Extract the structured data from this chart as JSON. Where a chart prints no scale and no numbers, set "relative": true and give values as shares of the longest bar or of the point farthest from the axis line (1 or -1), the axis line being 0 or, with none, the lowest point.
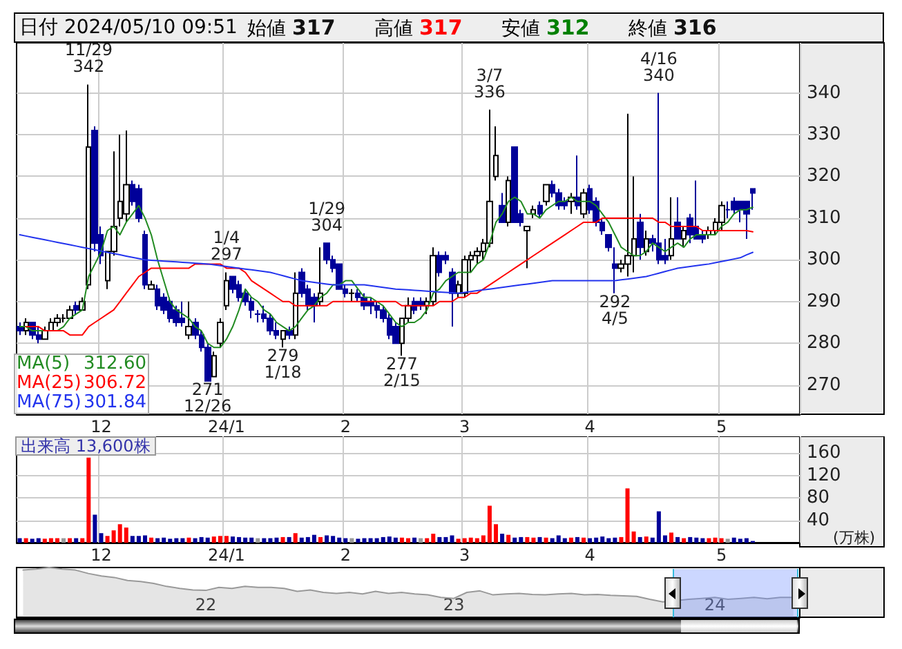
{
  "chart_data": [
    {
      "type": "candlestick",
      "title": "日付 2024/05/10 09:51",
      "legend": "bottom left",
      "grid": true,
      "marker": "none",
      "line_style": "solid",
      "ylim": [
        263,
        352
      ],
      "yticks": [
        270,
        280,
        290,
        300,
        310,
        320,
        330,
        340
      ],
      "annotations": [
        "始値 317",
        "高値 317",
        "安値 312",
        "終値 316",
        {
          "text": "11/29\n342",
          "y": 342
        },
        {
          "text": "1/4\n297",
          "y": 297
        },
        {
          "text": "1/29\n304",
          "y": 304
        },
        {
          "text": "3/7\n336",
          "y": 336
        },
        {
          "text": "4/16\n340",
          "y": 340
        },
        {
          "text": "271\n12/26",
          "y": 271
        },
        {
          "text": "279\n1/18",
          "y": 279
        },
        {
          "text": "277\n2/15",
          "y": 277
        },
        {
          "text": "292\n4/5",
          "y": 292
        },
        "312.60",
        "306.72",
        "301.84"
      ],
      "categories": [
        null,
        null,
        null,
        null,
        null,
        null,
        null,
        null,
        null,
        null,
        null,
        null,
        null,
        "12",
        null,
        null,
        null,
        null,
        null,
        null,
        null,
        null,
        null,
        null,
        null,
        null,
        null,
        null,
        null,
        null,
        null,
        null,
        null,
        "24/1",
        null,
        null,
        null,
        null,
        null,
        null,
        null,
        null,
        null,
        null,
        null,
        null,
        null,
        null,
        null,
        null,
        null,
        null,
        "2",
        null,
        null,
        null,
        null,
        null,
        null,
        null,
        null,
        null,
        null,
        null,
        null,
        null,
        null,
        null,
        null,
        null,
        null,
        "3",
        null,
        null,
        null,
        null,
        null,
        null,
        null,
        null,
        null,
        null,
        null,
        null,
        null,
        null,
        null,
        null,
        null,
        null,
        null,
        "4",
        null,
        null,
        null,
        null,
        null,
        null,
        null,
        null,
        null,
        null,
        null,
        null,
        null,
        null,
        null,
        null,
        null,
        null,
        null,
        null,
        "5",
        null,
        null,
        null,
        null,
        null
      ],
      "ohlc": [
        [
          284,
          285,
          282,
          283
        ],
        [
          283,
          286,
          282,
          285
        ],
        [
          285,
          285,
          281,
          282
        ],
        [
          282,
          284,
          280,
          281
        ],
        [
          281,
          284,
          281,
          283
        ],
        [
          283,
          286,
          283,
          285
        ],
        [
          285,
          287,
          284,
          286
        ],
        [
          286,
          287,
          285,
          286
        ],
        [
          286,
          289,
          286,
          288
        ],
        [
          289,
          290,
          287,
          288
        ],
        [
          288,
          291,
          288,
          290
        ],
        [
          294,
          342,
          293,
          327
        ],
        [
          331,
          332,
          302,
          304
        ],
        [
          306,
          308,
          299,
          301
        ],
        [
          295,
          302,
          293,
          302
        ],
        [
          302,
          326,
          301,
          308
        ],
        [
          310,
          330,
          308,
          314
        ],
        [
          311,
          331,
          309,
          318
        ],
        [
          318,
          319,
          313,
          314
        ],
        [
          317,
          318,
          309,
          310
        ],
        [
          306,
          307,
          293,
          294
        ],
        [
          293,
          295,
          293,
          294
        ],
        [
          293,
          294,
          288,
          289
        ],
        [
          291,
          292,
          287,
          288
        ],
        [
          290,
          291,
          285,
          286
        ],
        [
          288,
          289,
          284,
          285
        ],
        [
          286,
          290,
          284,
          285
        ],
        [
          282,
          290,
          281,
          284
        ],
        [
          285,
          286,
          281,
          282
        ],
        [
          282,
          283,
          278,
          279
        ],
        [
          279,
          280,
          271,
          271
        ],
        [
          272,
          278,
          272,
          277
        ],
        [
          280,
          286,
          279,
          285
        ],
        [
          289,
          297,
          288,
          295
        ],
        [
          296,
          296,
          292,
          293
        ],
        [
          294,
          295,
          290,
          291
        ],
        [
          292,
          293,
          289,
          290
        ],
        [
          290,
          291,
          286,
          288
        ],
        [
          287,
          288,
          285,
          287
        ],
        [
          287,
          289,
          285,
          286
        ],
        [
          286,
          287,
          282,
          283
        ],
        [
          283,
          285,
          281,
          282
        ],
        [
          281,
          283,
          279,
          283
        ],
        [
          283,
          284,
          281,
          282
        ],
        [
          282,
          297,
          281,
          292
        ],
        [
          297,
          298,
          291,
          292
        ],
        [
          293,
          294,
          288,
          289
        ],
        [
          291,
          292,
          285,
          289
        ],
        [
          290,
          303,
          289,
          292
        ],
        [
          304,
          304,
          299,
          300
        ],
        [
          300,
          301,
          297,
          298
        ],
        [
          299,
          299,
          293,
          293
        ],
        [
          293,
          294,
          291,
          292
        ],
        [
          292,
          293,
          290,
          292
        ],
        [
          292,
          293,
          290,
          291
        ],
        [
          291,
          292,
          288,
          289
        ],
        [
          290,
          291,
          287,
          289
        ],
        [
          289,
          290,
          286,
          288
        ],
        [
          288,
          289,
          285,
          286
        ],
        [
          286,
          287,
          281,
          282
        ],
        [
          284,
          285,
          280,
          280
        ],
        [
          280,
          286,
          277,
          286
        ],
        [
          286,
          291,
          285,
          289
        ],
        [
          290,
          291,
          287,
          288
        ],
        [
          290,
          291,
          288,
          289
        ],
        [
          289,
          291,
          287,
          290
        ],
        [
          290,
          303,
          289,
          301
        ],
        [
          301,
          302,
          296,
          297
        ],
        [
          301,
          302,
          299,
          300
        ],
        [
          297,
          298,
          284,
          292
        ],
        [
          292,
          295,
          291,
          294
        ],
        [
          292,
          301,
          291,
          300
        ],
        [
          300,
          302,
          297,
          301
        ],
        [
          301,
          303,
          299,
          302
        ],
        [
          302,
          305,
          300,
          304
        ],
        [
          304,
          336,
          303,
          314
        ],
        [
          320,
          332,
          319,
          325
        ],
        [
          313,
          316,
          309,
          309
        ],
        [
          309,
          320,
          308,
          319
        ],
        [
          327,
          327,
          309,
          309
        ],
        [
          311,
          312,
          308,
          309
        ],
        [
          307,
          308,
          298,
          308
        ],
        [
          311,
          313,
          310,
          312
        ],
        [
          313,
          314,
          310,
          311
        ],
        [
          314,
          318,
          313,
          318
        ],
        [
          318,
          319,
          315,
          316
        ],
        [
          316,
          317,
          312,
          313
        ],
        [
          314,
          315,
          312,
          313
        ],
        [
          314,
          316,
          311,
          315
        ],
        [
          315,
          325,
          312,
          313
        ],
        [
          311,
          317,
          310,
          316
        ],
        [
          317,
          318,
          311,
          312
        ],
        [
          314,
          315,
          308,
          309
        ],
        [
          309,
          310,
          306,
          307
        ],
        [
          306,
          306,
          302,
          303
        ],
        [
          299,
          303,
          292,
          298
        ],
        [
          298,
          300,
          297,
          299
        ],
        [
          299,
          335,
          296,
          301
        ],
        [
          301,
          320,
          297,
          305
        ],
        [
          309,
          311,
          300,
          303
        ],
        [
          302,
          307,
          301,
          305
        ],
        [
          305,
          306,
          302,
          304
        ],
        [
          304,
          340,
          299,
          300
        ],
        [
          301,
          305,
          299,
          300
        ],
        [
          301,
          315,
          300,
          305
        ],
        [
          309,
          315,
          305,
          305
        ],
        [
          305,
          308,
          303,
          307
        ],
        [
          310,
          311,
          304,
          306
        ],
        [
          308,
          319,
          305,
          305
        ],
        [
          306,
          307,
          304,
          305
        ],
        [
          306,
          308,
          305,
          307
        ],
        [
          307,
          310,
          306,
          309
        ],
        [
          309,
          314,
          307,
          313
        ],
        [
          312,
          314,
          310,
          312
        ],
        [
          314,
          315,
          311,
          312
        ],
        [
          314,
          314,
          309,
          312
        ],
        [
          314,
          314,
          305,
          311
        ],
        [
          317,
          317,
          312,
          316
        ]
      ],
      "series": [
        {
          "name": "MA(5)",
          "type": "line",
          "color": "#228b22",
          "values": [
            284,
            284,
            283,
            283,
            283,
            283,
            283,
            284,
            286,
            287,
            288,
            296,
            299,
            302,
            307,
            308,
            306,
            309,
            311,
            313,
            310,
            306,
            300,
            295,
            290,
            288,
            287,
            286,
            284,
            283,
            280,
            279,
            279,
            281,
            284,
            288,
            293,
            291,
            290,
            288,
            287,
            285,
            284,
            283,
            284,
            286,
            288,
            289,
            291,
            292,
            294,
            294,
            295,
            295,
            293,
            291,
            291,
            290,
            289,
            287,
            285,
            284,
            285,
            285,
            286,
            288,
            292,
            293,
            295,
            296,
            297,
            297,
            297,
            299,
            300,
            304,
            309,
            311,
            314,
            315,
            314,
            311,
            311,
            310,
            312,
            313,
            314,
            314,
            315,
            314,
            314,
            314,
            313,
            311,
            309,
            306,
            303,
            302,
            301,
            301,
            302,
            304,
            303,
            302,
            303,
            304,
            303,
            305,
            306,
            306,
            306,
            306,
            308,
            309,
            311,
            312,
            312,
            312.6
          ]
        },
        {
          "name": "MA(25)",
          "type": "line",
          "color": "#ff0000",
          "values": [
            null,
            284,
            284,
            284,
            283,
            283,
            283,
            283,
            282,
            282,
            282,
            284,
            285,
            286,
            287,
            288,
            290,
            292,
            294,
            296,
            297,
            298,
            298,
            298,
            298,
            298,
            298,
            298,
            299,
            299,
            299,
            299,
            299,
            298,
            298,
            298,
            297,
            295,
            294,
            293,
            292,
            291,
            290,
            290,
            289,
            289,
            289,
            289,
            289,
            289,
            290,
            290,
            290,
            290,
            290,
            290,
            290,
            290,
            290,
            290,
            290,
            289,
            289,
            289,
            289,
            289,
            289,
            290,
            290,
            290,
            291,
            291,
            292,
            292,
            293,
            294,
            295,
            296,
            297,
            298,
            299,
            300,
            301,
            302,
            303,
            304,
            305,
            306,
            307,
            308,
            309,
            309,
            309,
            310,
            310,
            310,
            310,
            310,
            310,
            310,
            310,
            310,
            309,
            309,
            308,
            308,
            308,
            308,
            308,
            307,
            307,
            307,
            307,
            307,
            307,
            307,
            307,
            306.7
          ]
        },
        {
          "name": "MA(75)",
          "type": "line",
          "color": "#2233ee",
          "values": [
            306,
            305.7,
            305.4,
            305.1,
            304.8,
            304.5,
            304.2,
            303.9,
            303.6,
            303.3,
            303,
            302.7,
            302.4,
            302.1,
            301.8,
            301.5,
            301.2,
            300.9,
            300.6,
            300.3,
            300,
            299.9,
            299.8,
            299.7,
            299.6,
            299.5,
            299.4,
            299.3,
            299.2,
            299.1,
            299,
            298.8,
            298.6,
            298.4,
            298.2,
            298,
            297.8,
            297.6,
            297.4,
            297.2,
            297,
            296.6,
            296.2,
            295.8,
            295.4,
            295,
            294.8,
            294.6,
            294.4,
            294.2,
            294,
            294,
            294,
            294,
            294,
            294,
            293.8,
            293.6,
            293.4,
            293.2,
            293,
            292.9,
            292.8,
            292.7,
            292.6,
            292.5,
            292.4,
            292.3,
            292.2,
            292.1,
            292,
            292.2,
            292.4,
            292.6,
            292.8,
            293,
            293.2,
            293.4,
            293.6,
            293.8,
            294,
            294.2,
            294.4,
            294.6,
            294.8,
            295,
            295,
            295,
            295,
            295,
            295,
            295,
            295,
            295,
            295,
            295,
            295.2,
            295.4,
            295.6,
            295.8,
            296,
            296.4,
            296.8,
            297.2,
            297.6,
            298,
            298.2,
            298.4,
            298.6,
            298.8,
            299,
            299.3,
            299.6,
            299.9,
            300.2,
            300.5,
            301.2,
            301.8
          ]
        }
      ]
    },
    {
      "type": "bar",
      "title": "出来高 13,600株",
      "ylabel": "(万株)",
      "grid": true,
      "ylim": [
        0,
        190
      ],
      "yticks": [
        40,
        80,
        120,
        160
      ],
      "categories": [
        null,
        null,
        null,
        null,
        null,
        null,
        null,
        null,
        null,
        null,
        null,
        null,
        null,
        "12",
        null,
        null,
        null,
        null,
        null,
        null,
        null,
        null,
        null,
        null,
        null,
        null,
        null,
        null,
        null,
        null,
        null,
        null,
        null,
        "24/1",
        null,
        null,
        null,
        null,
        null,
        null,
        null,
        null,
        null,
        null,
        null,
        null,
        null,
        null,
        null,
        null,
        null,
        null,
        "2",
        null,
        null,
        null,
        null,
        null,
        null,
        null,
        null,
        null,
        null,
        null,
        null,
        null,
        null,
        null,
        null,
        null,
        null,
        "3",
        null,
        null,
        null,
        null,
        null,
        null,
        null,
        null,
        null,
        null,
        null,
        null,
        null,
        null,
        null,
        null,
        null,
        null,
        null,
        "4",
        null,
        null,
        null,
        null,
        null,
        null,
        null,
        null,
        null,
        null,
        null,
        null,
        null,
        null,
        null,
        null,
        null,
        null,
        null,
        null,
        "5",
        null,
        null,
        null,
        null,
        null
      ],
      "values": [
        8,
        8,
        7,
        8,
        7,
        8,
        8,
        8,
        8,
        8,
        8,
        152,
        50,
        17,
        12,
        22,
        33,
        27,
        12,
        12,
        13,
        9,
        8,
        9,
        7,
        8,
        8,
        9,
        8,
        10,
        9,
        11,
        12,
        12,
        11,
        10,
        9,
        9,
        8,
        8,
        8,
        9,
        10,
        10,
        17,
        9,
        10,
        14,
        10,
        13,
        12,
        9,
        8,
        8,
        7,
        8,
        8,
        8,
        10,
        11,
        9,
        9,
        8,
        9,
        8,
        8,
        16,
        10,
        10,
        13,
        7,
        8,
        9,
        8,
        13,
        66,
        33,
        16,
        14,
        9,
        10,
        10,
        9,
        10,
        9,
        8,
        13,
        8,
        9,
        10,
        9,
        8,
        9,
        11,
        8,
        9,
        10,
        97,
        20,
        10,
        11,
        9,
        56,
        13,
        18,
        10,
        8,
        10,
        9,
        8,
        8,
        9,
        8,
        7,
        9,
        7,
        8,
        3
      ],
      "colors": [
        "#000099",
        "#ff0000",
        "#000099",
        "#000099",
        "#ff0000",
        "#ff0000",
        "#ff0000",
        "#999999",
        "#ff0000",
        "#000099",
        "#ff0000",
        "#ff0000",
        "#000099",
        "#000099",
        "#ff0000",
        "#ff0000",
        "#ff0000",
        "#ff0000",
        "#000099",
        "#000099",
        "#000099",
        "#ff0000",
        "#000099",
        "#000099",
        "#000099",
        "#000099",
        "#000099",
        "#ff0000",
        "#000099",
        "#000099",
        "#000099",
        "#ff0000",
        "#ff0000",
        "#ff0000",
        "#000099",
        "#000099",
        "#000099",
        "#000099",
        "#999999",
        "#000099",
        "#000099",
        "#000099",
        "#ff0000",
        "#000099",
        "#ff0000",
        "#000099",
        "#000099",
        "#000099",
        "#ff0000",
        "#000099",
        "#000099",
        "#000099",
        "#000099",
        "#999999",
        "#000099",
        "#000099",
        "#000099",
        "#000099",
        "#000099",
        "#000099",
        "#000099",
        "#ff0000",
        "#ff0000",
        "#000099",
        "#999999",
        "#ff0000",
        "#ff0000",
        "#000099",
        "#000099",
        "#000099",
        "#ff0000",
        "#ff0000",
        "#ff0000",
        "#ff0000",
        "#ff0000",
        "#ff0000",
        "#ff0000",
        "#000099",
        "#ff0000",
        "#000099",
        "#000099",
        "#ff0000",
        "#ff0000",
        "#000099",
        "#ff0000",
        "#000099",
        "#000099",
        "#000099",
        "#ff0000",
        "#000099",
        "#ff0000",
        "#000099",
        "#000099",
        "#000099",
        "#000099",
        "#000099",
        "#ff0000",
        "#ff0000",
        "#ff0000",
        "#000099",
        "#ff0000",
        "#000099",
        "#000099",
        "#000099",
        "#ff0000",
        "#000099",
        "#ff0000",
        "#000099",
        "#000099",
        "#000099",
        "#ff0000",
        "#ff0000",
        "#ff0000",
        "#999999",
        "#000099",
        "#000099",
        "#000099",
        "#000099"
      ]
    },
    {
      "type": "area",
      "relative": true,
      "color": "#999999",
      "categories": [
        null,
        null,
        null,
        null,
        null,
        null,
        null,
        null,
        null,
        null,
        null,
        null,
        null,
        null,
        "22",
        null,
        null,
        null,
        null,
        null,
        null,
        null,
        null,
        null,
        null,
        null,
        null,
        null,
        null,
        null,
        null,
        null,
        null,
        "23",
        null,
        null,
        null,
        null,
        null,
        null,
        null,
        null,
        null,
        null,
        null,
        null,
        null,
        null,
        null,
        null,
        null,
        null,
        null,
        "24",
        null,
        null,
        null,
        null,
        null,
        null
      ],
      "values": [
        0.95,
        0.97,
        1,
        0.97,
        0.95,
        0.88,
        0.83,
        0.8,
        0.74,
        0.72,
        0.68,
        0.62,
        0.58,
        0.55,
        0.54,
        0.6,
        0.58,
        0.62,
        0.6,
        0.6,
        0.58,
        0.52,
        0.55,
        0.5,
        0.48,
        0.5,
        0.47,
        0.52,
        0.48,
        0.5,
        0.47,
        0.45,
        0.4,
        0.38,
        0.5,
        0.53,
        0.45,
        0.47,
        0.48,
        0.46,
        0.45,
        0.47,
        0.48,
        0.45,
        0.46,
        0.44,
        0.43,
        0.42,
        0.36,
        0.31,
        null,
        0.36,
        0.38,
        0.4,
        0.36,
        0.38,
        0.4,
        0.37,
        0.4,
        0.4
      ]
    }
  ]
}
